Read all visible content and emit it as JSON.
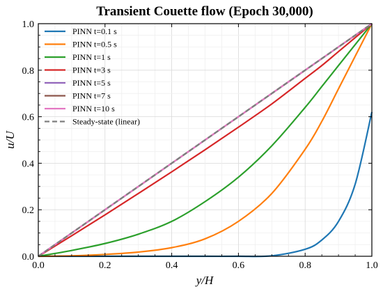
{
  "chart_data": {
    "type": "line",
    "title": "Transient Couette flow (Epoch 30,000)",
    "xlabel": "y/H",
    "ylabel": "u/U",
    "xlim": [
      0,
      1
    ],
    "ylim": [
      0,
      1
    ],
    "xticks": [
      "0.0",
      "0.2",
      "0.4",
      "0.6",
      "0.8",
      "1.0"
    ],
    "yticks": [
      "0.0",
      "0.2",
      "0.4",
      "0.6",
      "0.8",
      "1.0"
    ],
    "grid": true,
    "legend_position": "top-left",
    "x": [
      0,
      0.1,
      0.2,
      0.3,
      0.4,
      0.5,
      0.6,
      0.7,
      0.8,
      0.85,
      0.9,
      0.95,
      1.0
    ],
    "series": [
      {
        "name": "PINN  t=0.1 s",
        "color": "#1f77b4",
        "style": "solid",
        "values": [
          0,
          0,
          0,
          0,
          0,
          0,
          0,
          0.002,
          0.03,
          0.07,
          0.15,
          0.31,
          0.62
        ]
      },
      {
        "name": "PINN  t=0.5 s",
        "color": "#ff7f0e",
        "style": "solid",
        "values": [
          0,
          0.002,
          0.008,
          0.018,
          0.037,
          0.075,
          0.15,
          0.27,
          0.46,
          0.58,
          0.72,
          0.86,
          1.0
        ]
      },
      {
        "name": "PINN  t=1 s",
        "color": "#2ca02c",
        "style": "solid",
        "values": [
          0,
          0.025,
          0.055,
          0.095,
          0.15,
          0.235,
          0.34,
          0.475,
          0.64,
          0.73,
          0.82,
          0.91,
          1.0
        ]
      },
      {
        "name": "PINN  t=3 s",
        "color": "#d62728",
        "style": "solid",
        "values": [
          0,
          0.088,
          0.178,
          0.27,
          0.363,
          0.458,
          0.555,
          0.655,
          0.765,
          0.82,
          0.88,
          0.94,
          1.0
        ]
      },
      {
        "name": "PINN  t=5 s",
        "color": "#9467bd",
        "style": "solid",
        "values": [
          0,
          0.1,
          0.2,
          0.3,
          0.4,
          0.5,
          0.6,
          0.7,
          0.8,
          0.85,
          0.9,
          0.95,
          1.0
        ]
      },
      {
        "name": "PINN  t=7 s",
        "color": "#8c564b",
        "style": "solid",
        "values": [
          0,
          0.1,
          0.2,
          0.3,
          0.4,
          0.5,
          0.6,
          0.7,
          0.8,
          0.85,
          0.9,
          0.95,
          1.0
        ]
      },
      {
        "name": "PINN  t=10 s",
        "color": "#e377c2",
        "style": "solid",
        "values": [
          0,
          0.1,
          0.2,
          0.3,
          0.4,
          0.5,
          0.6,
          0.7,
          0.8,
          0.85,
          0.9,
          0.95,
          1.0
        ]
      },
      {
        "name": "Steady-state (linear)",
        "color": "#7f7f7f",
        "style": "dashed",
        "values": [
          0,
          0.1,
          0.2,
          0.3,
          0.4,
          0.5,
          0.6,
          0.7,
          0.8,
          0.85,
          0.9,
          0.95,
          1.0
        ]
      }
    ]
  }
}
